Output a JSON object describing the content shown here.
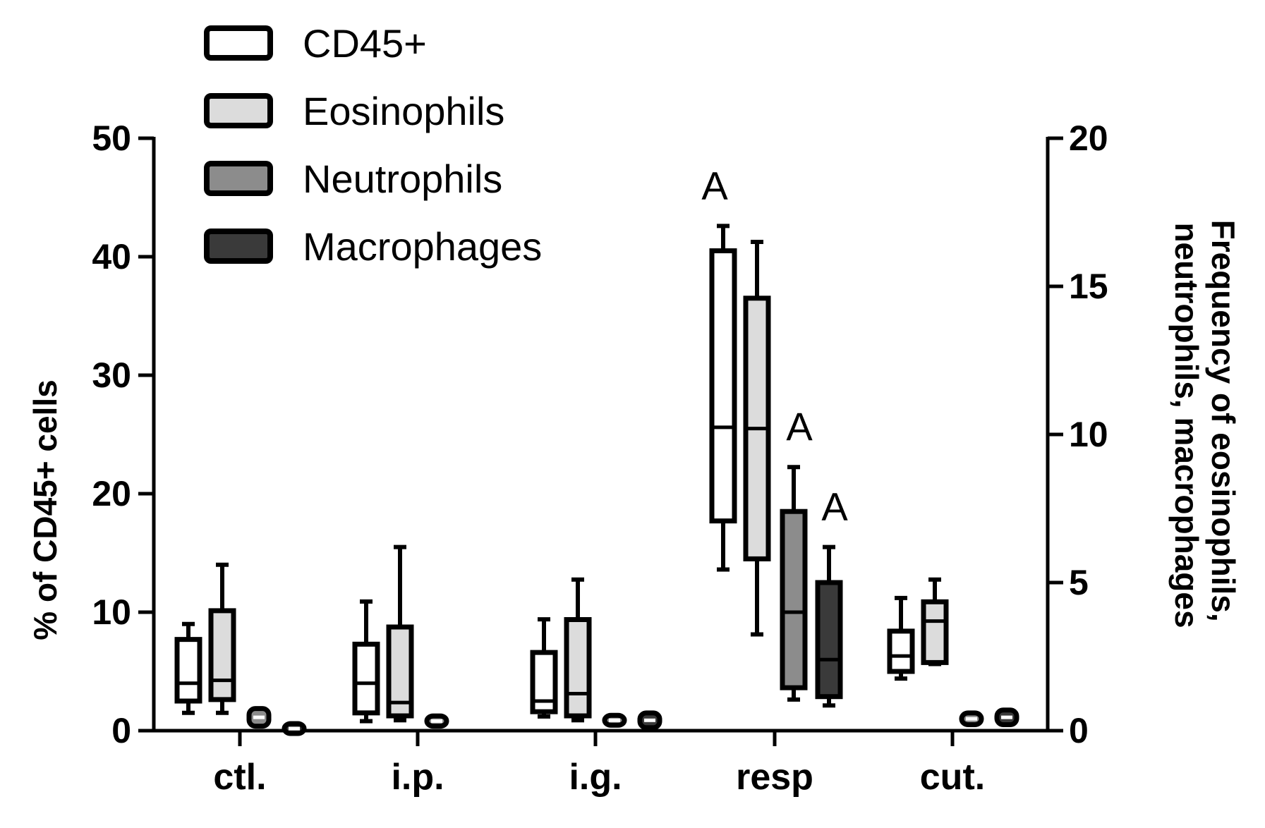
{
  "chart_data": {
    "type": "boxplot",
    "title": "",
    "xlabel": "",
    "ylabel_left": "% of CD45+ cells",
    "ylabel_right": "Frequency of eosinophils,\nneutrophils, macrophages",
    "ylabel_right_lines": [
      "Frequency of eosinophils,",
      "neutrophils, macrophages"
    ],
    "ylim_left": [
      0,
      50
    ],
    "ylim_right": [
      0,
      20
    ],
    "yticks_left": [
      "0",
      "10",
      "20",
      "30",
      "40",
      "50"
    ],
    "yticks_right": [
      "0",
      "5",
      "10",
      "15",
      "20"
    ],
    "categories": [
      "ctl.",
      "i.p.",
      "i.g.",
      "resp",
      "cut."
    ],
    "legend": [
      {
        "name": "CD45+",
        "color": "#ffffff"
      },
      {
        "name": "Eosinophils",
        "color": "#dcdcdc"
      },
      {
        "name": "Neutrophils",
        "color": "#8c8c8c"
      },
      {
        "name": "Macrophages",
        "color": "#3a3a3a"
      }
    ],
    "series": [
      {
        "name": "CD45+",
        "axis": "left",
        "fill": "#ffffff",
        "median_color": "#000000",
        "boxes": [
          {
            "category": "ctl.",
            "min": 1.5,
            "q1": 2.5,
            "median": 4.0,
            "q3": 7.7,
            "max": 9.0
          },
          {
            "category": "i.p.",
            "min": 0.8,
            "q1": 1.5,
            "median": 4.0,
            "q3": 7.3,
            "max": 10.9
          },
          {
            "category": "i.g.",
            "min": 1.2,
            "q1": 1.6,
            "median": 2.5,
            "q3": 6.6,
            "max": 9.4
          },
          {
            "category": "resp",
            "min": 13.6,
            "q1": 17.7,
            "median": 25.6,
            "q3": 40.5,
            "max": 42.6
          },
          {
            "category": "cut.",
            "min": 4.4,
            "q1": 5.0,
            "median": 6.3,
            "q3": 8.4,
            "max": 11.2
          }
        ]
      },
      {
        "name": "Eosinophils",
        "axis": "right",
        "fill": "#dcdcdc",
        "median_color": "#000000",
        "boxes": [
          {
            "category": "ctl.",
            "min": 0.6,
            "q1": 1.05,
            "median": 1.7,
            "q3": 4.05,
            "max": 5.6
          },
          {
            "category": "i.p.",
            "min": 0.35,
            "q1": 0.5,
            "median": 0.95,
            "q3": 3.5,
            "max": 6.2
          },
          {
            "category": "i.g.",
            "min": 0.35,
            "q1": 0.5,
            "median": 1.25,
            "q3": 3.75,
            "max": 5.1
          },
          {
            "category": "resp",
            "min": 3.25,
            "q1": 5.8,
            "median": 10.2,
            "q3": 14.6,
            "max": 16.5
          },
          {
            "category": "cut.",
            "min": 2.25,
            "q1": 2.3,
            "median": 3.7,
            "q3": 4.35,
            "max": 5.1
          }
        ]
      },
      {
        "name": "Neutrophils",
        "axis": "right",
        "fill": "#8c8c8c",
        "median_color": "#000000",
        "boxes": [
          {
            "category": "ctl.",
            "min": 0.2,
            "q1": 0.35,
            "median": 0.45,
            "q3": 0.55,
            "max": 0.7
          },
          {
            "category": "i.p.",
            "min": 0.2,
            "q1": 0.3,
            "median": 0.35,
            "q3": 0.4,
            "max": 0.45
          },
          {
            "category": "i.g.",
            "min": 0.25,
            "q1": 0.3,
            "median": 0.35,
            "q3": 0.4,
            "max": 0.45
          },
          {
            "category": "resp",
            "min": 1.05,
            "q1": 1.45,
            "median": 4.0,
            "q3": 7.4,
            "max": 8.9
          },
          {
            "category": "cut.",
            "min": 0.25,
            "q1": 0.3,
            "median": 0.4,
            "q3": 0.5,
            "max": 0.55
          }
        ]
      },
      {
        "name": "Macrophages",
        "axis": "right",
        "fill": "#3a3a3a",
        "median_color": "#000000",
        "boxes": [
          {
            "category": "ctl.",
            "min": 0.05,
            "q1": 0.06,
            "median": 0.07,
            "q3": 0.08,
            "max": 0.09
          },
          {
            "category": "i.p.",
            "min": null,
            "q1": null,
            "median": null,
            "q3": null,
            "max": null
          },
          {
            "category": "i.g.",
            "min": 0.15,
            "q1": 0.25,
            "median": 0.35,
            "q3": 0.45,
            "max": 0.55
          },
          {
            "category": "resp",
            "min": 0.85,
            "q1": 1.15,
            "median": 2.4,
            "q3": 5.0,
            "max": 6.2
          },
          {
            "category": "cut.",
            "min": 0.25,
            "q1": 0.3,
            "median": 0.4,
            "q3": 0.55,
            "max": 0.65
          }
        ]
      }
    ],
    "annotations": [
      {
        "text": "A",
        "category": "resp",
        "series": "CD45+"
      },
      {
        "text": "A",
        "category": "resp",
        "series": "Neutrophils"
      },
      {
        "text": "A",
        "category": "resp",
        "series": "Macrophages"
      }
    ]
  }
}
